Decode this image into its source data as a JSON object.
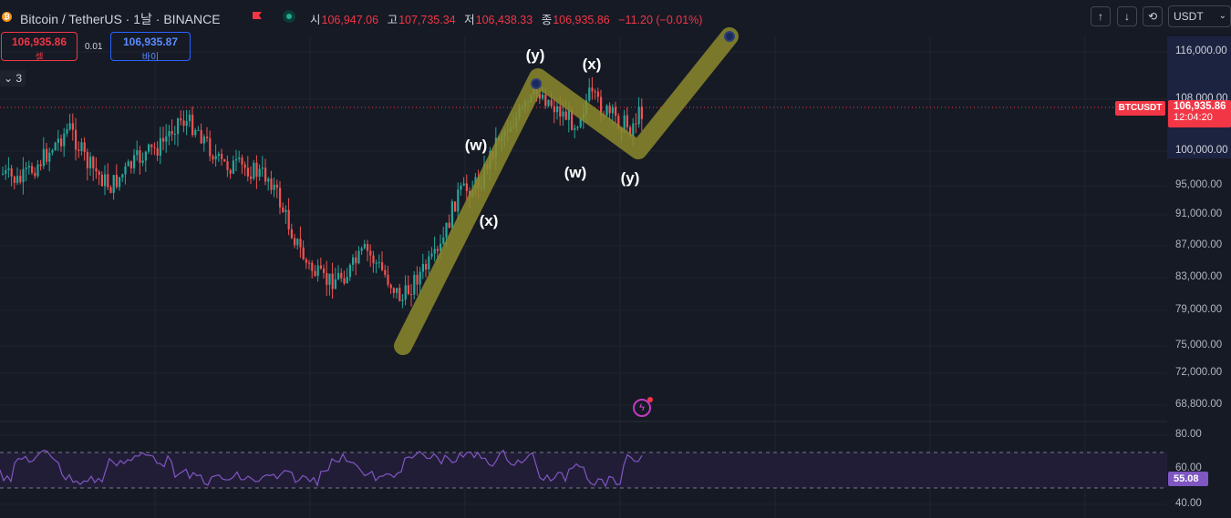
{
  "header": {
    "title": "Bitcoin / TetherUS · 1날 · BINANCE",
    "coin_icon": "bitcoin-icon",
    "ohlc": {
      "open_key": "시",
      "open": "106,947.06",
      "high_key": "고",
      "high": "107,735.34",
      "low_key": "저",
      "low": "106,438.33",
      "close_key": "종",
      "close": "106,935.86",
      "change": "−11.20 (−0.01%)"
    }
  },
  "trade": {
    "sell_price": "106,935.86",
    "sell_label": "셀",
    "spread": "0.01",
    "buy_price": "106,935.87",
    "buy_label": "바이"
  },
  "indicator_toggle": {
    "count": "3"
  },
  "toolbar": {
    "currency": "USDT",
    "buttons": [
      "arrow-up-icon",
      "arrow-down-icon",
      "refresh-icon"
    ]
  },
  "price_axis": {
    "ticks": [
      "116,000.00",
      "108,000.00",
      "100,000.00",
      "95,000.00",
      "91,000.00",
      "87,000.00",
      "83,000.00",
      "79,000.00",
      "75,000.00",
      "72,000.00",
      "68,800.00"
    ],
    "rsi_ticks": [
      "80.00",
      "60.00",
      "40.00"
    ],
    "symbol_tag": "BTCUSDT",
    "current_price": "106,935.86",
    "countdown": "12:04:20",
    "rsi_value": "55.08"
  },
  "annotations": {
    "labels": [
      "(y)",
      "(x)",
      "(w)",
      "(x)",
      "(w)",
      "(y)"
    ]
  },
  "colors": {
    "up": "#26a69a",
    "down": "#ef5350",
    "wave": "#8c8a2c",
    "rsi": "#7e57c2",
    "background": "#161a25"
  }
}
